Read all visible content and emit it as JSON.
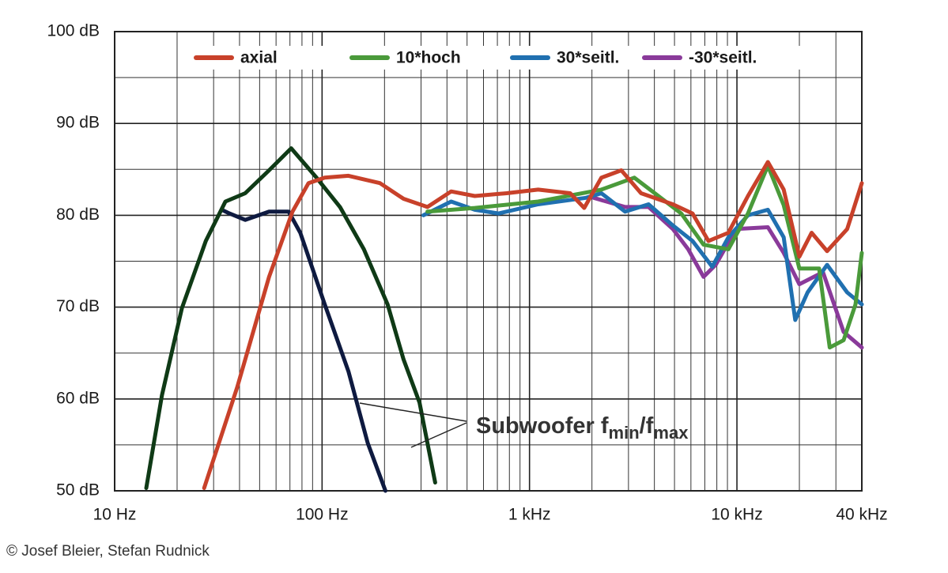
{
  "chart_data": {
    "type": "line",
    "log_x": true,
    "xlim": [
      10,
      40000
    ],
    "ylim": [
      50,
      100
    ],
    "xticks": [
      {
        "value": 10,
        "label": "10 Hz"
      },
      {
        "value": 100,
        "label": "100 Hz"
      },
      {
        "value": 1000,
        "label": "1 kHz"
      },
      {
        "value": 10000,
        "label": "10 kHz"
      },
      {
        "value": 40000,
        "label": "40 kHz"
      }
    ],
    "yticks": [
      {
        "value": 50,
        "label": "50 dB"
      },
      {
        "value": 60,
        "label": "60 dB"
      },
      {
        "value": 70,
        "label": "70 dB"
      },
      {
        "value": 80,
        "label": "80 dB"
      },
      {
        "value": 90,
        "label": "90 dB"
      },
      {
        "value": 100,
        "label": "100 dB"
      }
    ],
    "xgrid": [
      20,
      30,
      40,
      50,
      60,
      70,
      80,
      90,
      200,
      300,
      400,
      500,
      600,
      700,
      800,
      900,
      2000,
      3000,
      4000,
      5000,
      6000,
      7000,
      8000,
      9000,
      20000,
      30000
    ],
    "ygrid": [
      55,
      65,
      75,
      85,
      95
    ],
    "grid": true,
    "legend": "top",
    "series": [
      {
        "name": "axial",
        "color": "#c8412a",
        "x": [
          27,
          39,
          55.5,
          72,
          86,
          103,
          134,
          190,
          247,
          322,
          419,
          545,
          775,
          1100,
          1570,
          1835,
          2220,
          2770,
          3450,
          4910,
          6110,
          7290,
          9090,
          11300,
          14100,
          16800,
          20000,
          22900,
          27200,
          34000,
          40000
        ],
        "values": [
          50.3,
          61.3,
          73.3,
          80.4,
          83.5,
          84.1,
          84.3,
          83.5,
          81.8,
          80.9,
          82.6,
          82.1,
          82.4,
          82.8,
          82.4,
          80.8,
          84.1,
          84.9,
          82.4,
          81.2,
          80.2,
          77.2,
          78.1,
          82.1,
          85.8,
          82.8,
          75.5,
          78.1,
          76.1,
          78.5,
          83.5
        ]
      },
      {
        "name": "10*hoch",
        "color": "#4a9a3a",
        "x": [
          322,
          545,
          1100,
          2220,
          3200,
          4180,
          5390,
          6900,
          9090,
          11300,
          14100,
          16800,
          20000,
          24900,
          28000,
          32700,
          37300,
          40000
        ],
        "values": [
          80.4,
          80.8,
          81.5,
          82.8,
          84.1,
          82.1,
          80.2,
          76.8,
          76.3,
          80.2,
          85.4,
          81.1,
          74.2,
          74.2,
          65.6,
          66.4,
          70.3,
          75.9
        ]
      },
      {
        "name": "30*seitl.",
        "color": "#2070b0",
        "x": [
          308,
          419,
          545,
          710,
          1100,
          1870,
          2220,
          2890,
          3750,
          4910,
          6110,
          7600,
          9090,
          11300,
          14100,
          16800,
          19100,
          21900,
          27200,
          34000,
          40000
        ],
        "values": [
          80.0,
          81.5,
          80.6,
          80.2,
          81.2,
          81.9,
          82.4,
          80.4,
          81.2,
          78.9,
          77.2,
          74.4,
          77.6,
          80.0,
          80.6,
          77.6,
          68.6,
          71.6,
          74.6,
          71.6,
          70.3
        ]
      },
      {
        "name": "-30*seitl.",
        "color": "#8a3a9a",
        "x": [
          2040,
          2890,
          3750,
          4910,
          5820,
          6900,
          7900,
          9910,
          14100,
          16800,
          20000,
          26000,
          32700,
          40000
        ],
        "values": [
          81.9,
          80.9,
          80.9,
          78.5,
          76.3,
          73.3,
          74.6,
          78.5,
          78.7,
          75.9,
          72.5,
          73.8,
          67.3,
          65.6
        ]
      },
      {
        "color": "#0f3a16",
        "x": [
          14.2,
          16.9,
          21.1,
          27.5,
          34.2,
          42.6,
          55.5,
          71,
          94,
          122,
          159,
          207,
          247,
          295,
          351
        ],
        "values": [
          50.3,
          60.4,
          69.9,
          77.2,
          81.5,
          82.4,
          84.9,
          87.3,
          84.1,
          80.9,
          76.3,
          70.3,
          64.3,
          59.6,
          50.9
        ]
      },
      {
        "color": "#0e1a40",
        "x": [
          32.8,
          35.8,
          42.6,
          55.5,
          69,
          78.5,
          103,
          134,
          166,
          202
        ],
        "values": [
          80.6,
          80.2,
          79.5,
          80.4,
          80.4,
          78.1,
          70.3,
          63.0,
          55.2,
          50
        ]
      }
    ],
    "annotation": [
      "Subwoofer f",
      "min",
      "/f",
      "max"
    ],
    "credit": "© Josef Bleier, Stefan Rudnick"
  }
}
